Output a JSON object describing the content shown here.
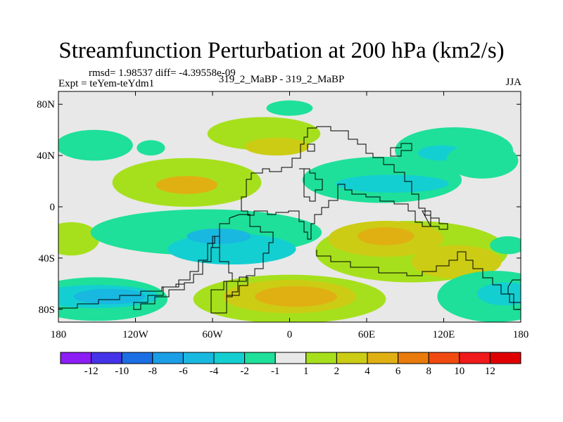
{
  "title": "Streamfunction Perturbation at 200 hPa (km2/s)",
  "subtitle_left_top": "rmsd= 1.98537 diff= -4.39558e-09",
  "subtitle_left": "Expt = teYem-teYdm1",
  "subtitle_center": "319_2_MaBP - 319_2_MaBP",
  "subtitle_right": "JJA",
  "chart_data": {
    "type": "heatmap",
    "title": "Streamfunction Perturbation at 200 hPa (km2/s)",
    "field": "200 hPa streamfunction perturbation",
    "units": "km2/s",
    "season": "JJA",
    "xlim": [
      -180,
      180
    ],
    "ylim": [
      -90,
      90
    ],
    "xticks": [
      {
        "value": -180,
        "label": "180"
      },
      {
        "value": -120,
        "label": "120W"
      },
      {
        "value": -60,
        "label": "60W"
      },
      {
        "value": 0,
        "label": "0"
      },
      {
        "value": 60,
        "label": "60E"
      },
      {
        "value": 120,
        "label": "120E"
      },
      {
        "value": 180,
        "label": "180"
      }
    ],
    "yticks": [
      {
        "value": 80,
        "label": "80N"
      },
      {
        "value": 40,
        "label": "40N"
      },
      {
        "value": 0,
        "label": "0"
      },
      {
        "value": -40,
        "label": "40S"
      },
      {
        "value": -80,
        "label": "80S"
      }
    ],
    "colorbar": {
      "labels": [
        "-12",
        "-10",
        "-8",
        "-6",
        "-4",
        "-2",
        "-1",
        "1",
        "2",
        "4",
        "6",
        "8",
        "10",
        "12"
      ],
      "colors": [
        "#8c1df5",
        "#4433e8",
        "#1c6ee5",
        "#1a9ee6",
        "#18b8e0",
        "#14cfd1",
        "#1ee09a",
        "#e8e8e8",
        "#a6e01c",
        "#cccc14",
        "#e0b012",
        "#e87b0c",
        "#f04a10",
        "#f01a1a",
        "#e00000"
      ]
    },
    "features": [
      {
        "lon": -152,
        "lat": 48,
        "rx": 30,
        "ry": 12,
        "value": -1.5
      },
      {
        "lon": -108,
        "lat": 46,
        "rx": 11,
        "ry": 6,
        "value": -1.5
      },
      {
        "lon": -20,
        "lat": 57,
        "rx": 44,
        "ry": 13,
        "value": 1.5
      },
      {
        "lon": -10,
        "lat": 47,
        "rx": 25,
        "ry": 7,
        "value": 2.5
      },
      {
        "lon": 0,
        "lat": 77,
        "rx": 18,
        "ry": 6,
        "value": -1.5
      },
      {
        "lon": -80,
        "lat": 19,
        "rx": 58,
        "ry": 19,
        "value": 1.5
      },
      {
        "lon": -80,
        "lat": 17,
        "rx": 24,
        "ry": 7,
        "value": 4.5
      },
      {
        "lon": 72,
        "lat": 21,
        "rx": 62,
        "ry": 18,
        "value": -1.5
      },
      {
        "lon": 80,
        "lat": 18,
        "rx": 44,
        "ry": 7,
        "value": -2.5
      },
      {
        "lon": 128,
        "lat": 44,
        "rx": 46,
        "ry": 18,
        "value": -1.5
      },
      {
        "lon": 118,
        "lat": 42,
        "rx": 18,
        "ry": 6,
        "value": -2.5
      },
      {
        "lon": 150,
        "lat": 36,
        "rx": 28,
        "ry": 14,
        "value": -1.5
      },
      {
        "lon": -170,
        "lat": -25,
        "rx": 22,
        "ry": 13,
        "value": 1.5
      },
      {
        "lon": -65,
        "lat": -20,
        "rx": 90,
        "ry": 18,
        "value": -1.5
      },
      {
        "lon": -45,
        "lat": -33,
        "rx": 50,
        "ry": 12,
        "value": -2.5
      },
      {
        "lon": -55,
        "lat": -23,
        "rx": 25,
        "ry": 6,
        "value": -4.5
      },
      {
        "lon": 95,
        "lat": -35,
        "rx": 75,
        "ry": 24,
        "value": 1.5
      },
      {
        "lon": 75,
        "lat": -25,
        "rx": 45,
        "ry": 14,
        "value": 2.5
      },
      {
        "lon": 75,
        "lat": -23,
        "rx": 22,
        "ry": 7,
        "value": 4.5
      },
      {
        "lon": 130,
        "lat": -43,
        "rx": 35,
        "ry": 13,
        "value": 2.5
      },
      {
        "lon": 170,
        "lat": -30,
        "rx": 14,
        "ry": 7,
        "value": -1.5
      },
      {
        "lon": -150,
        "lat": -72,
        "rx": 55,
        "ry": 17,
        "value": -1.5
      },
      {
        "lon": -150,
        "lat": -70,
        "rx": 48,
        "ry": 9,
        "value": -2.5
      },
      {
        "lon": -140,
        "lat": -70,
        "rx": 28,
        "ry": 6,
        "value": -4.5
      },
      {
        "lon": 0,
        "lat": -72,
        "rx": 75,
        "ry": 19,
        "value": 1.5
      },
      {
        "lon": 0,
        "lat": -70,
        "rx": 52,
        "ry": 13,
        "value": 2.5
      },
      {
        "lon": 5,
        "lat": -70,
        "rx": 32,
        "ry": 8,
        "value": 4.5
      },
      {
        "lon": 160,
        "lat": -70,
        "rx": 45,
        "ry": 20,
        "value": -1.5
      },
      {
        "lon": 168,
        "lat": -68,
        "rx": 22,
        "ry": 9,
        "value": -2.5
      }
    ],
    "landmask_outline": "blocky continental outlines (Eurasia, Africa, South America, Australia) from model land-sea mask"
  }
}
